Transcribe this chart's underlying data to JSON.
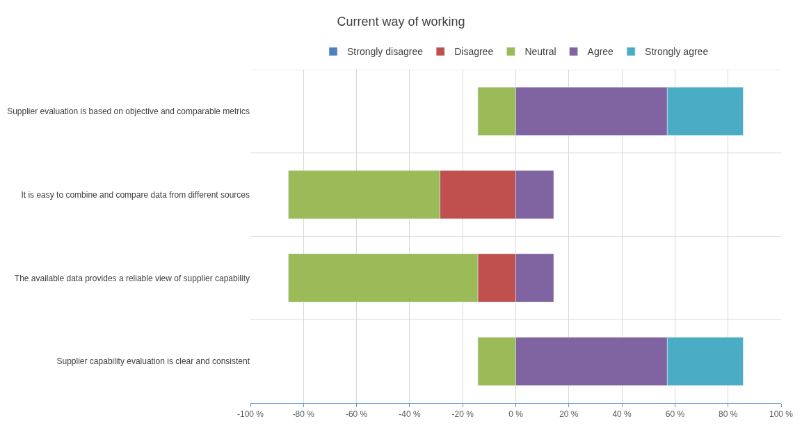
{
  "chart_data": {
    "type": "bar",
    "title": "Current way of working",
    "orientation": "horizontal",
    "stacked": true,
    "categories": [
      "Supplier evaluation is based on objective and comparable metrics",
      "It is easy to combine and compare data from different sources",
      "The available data provides a reliable view of supplier capability",
      "Supplier capability evaluation is clear and consistent"
    ],
    "series": [
      {
        "name": "Strongly disagree",
        "color": "#4f81bd",
        "values": [
          null,
          null,
          null,
          null
        ]
      },
      {
        "name": "Disagree",
        "color": "#c0504d",
        "values": [
          null,
          -28.6,
          -14.3,
          null
        ]
      },
      {
        "name": "Neutral",
        "color": "#9bbb59",
        "values": [
          -14.3,
          -57.1,
          -71.4,
          -14.3
        ]
      },
      {
        "name": "Agree",
        "color": "#8064a2",
        "values": [
          57.1,
          14.3,
          14.3,
          57.1
        ]
      },
      {
        "name": "Strongly agree",
        "color": "#4bacc6",
        "values": [
          28.6,
          null,
          null,
          28.6
        ]
      }
    ],
    "xlim": [
      -100,
      100
    ],
    "xticks": [
      {
        "value": -100,
        "label": "-100 %"
      },
      {
        "value": -80,
        "label": "-80 %"
      },
      {
        "value": -60,
        "label": "-60 %"
      },
      {
        "value": -40,
        "label": "-40 %"
      },
      {
        "value": -20,
        "label": "-20 %"
      },
      {
        "value": 0,
        "label": "0 %"
      },
      {
        "value": 20,
        "label": "20 %"
      },
      {
        "value": 40,
        "label": "40 %"
      },
      {
        "value": 60,
        "label": "60 %"
      },
      {
        "value": 80,
        "label": "80 %"
      },
      {
        "value": 100,
        "label": "100 %"
      }
    ],
    "grid": true,
    "legend": "top"
  }
}
